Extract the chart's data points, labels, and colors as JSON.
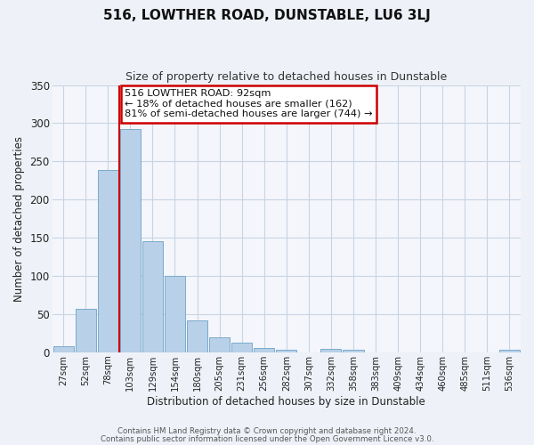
{
  "title": "516, LOWTHER ROAD, DUNSTABLE, LU6 3LJ",
  "subtitle": "Size of property relative to detached houses in Dunstable",
  "xlabel": "Distribution of detached houses by size in Dunstable",
  "ylabel": "Number of detached properties",
  "bar_labels": [
    "27sqm",
    "52sqm",
    "78sqm",
    "103sqm",
    "129sqm",
    "154sqm",
    "180sqm",
    "205sqm",
    "231sqm",
    "256sqm",
    "282sqm",
    "307sqm",
    "332sqm",
    "358sqm",
    "383sqm",
    "409sqm",
    "434sqm",
    "460sqm",
    "485sqm",
    "511sqm",
    "536sqm"
  ],
  "bar_values": [
    8,
    57,
    239,
    292,
    145,
    100,
    42,
    20,
    12,
    6,
    3,
    0,
    4,
    3,
    0,
    0,
    0,
    0,
    0,
    0,
    3
  ],
  "bar_color": "#b8d0e8",
  "bar_edge_color": "#7aabcc",
  "vline_color": "#cc0000",
  "annotation_title": "516 LOWTHER ROAD: 92sqm",
  "annotation_line1": "← 18% of detached houses are smaller (162)",
  "annotation_line2": "81% of semi-detached houses are larger (744) →",
  "annotation_box_color": "#cc0000",
  "ylim": [
    0,
    350
  ],
  "yticks": [
    0,
    50,
    100,
    150,
    200,
    250,
    300,
    350
  ],
  "footer1": "Contains HM Land Registry data © Crown copyright and database right 2024.",
  "footer2": "Contains public sector information licensed under the Open Government Licence v3.0.",
  "bg_color": "#eef2f8",
  "plot_bg_color": "#f4f6fb",
  "grid_color": "#c8d4e4"
}
